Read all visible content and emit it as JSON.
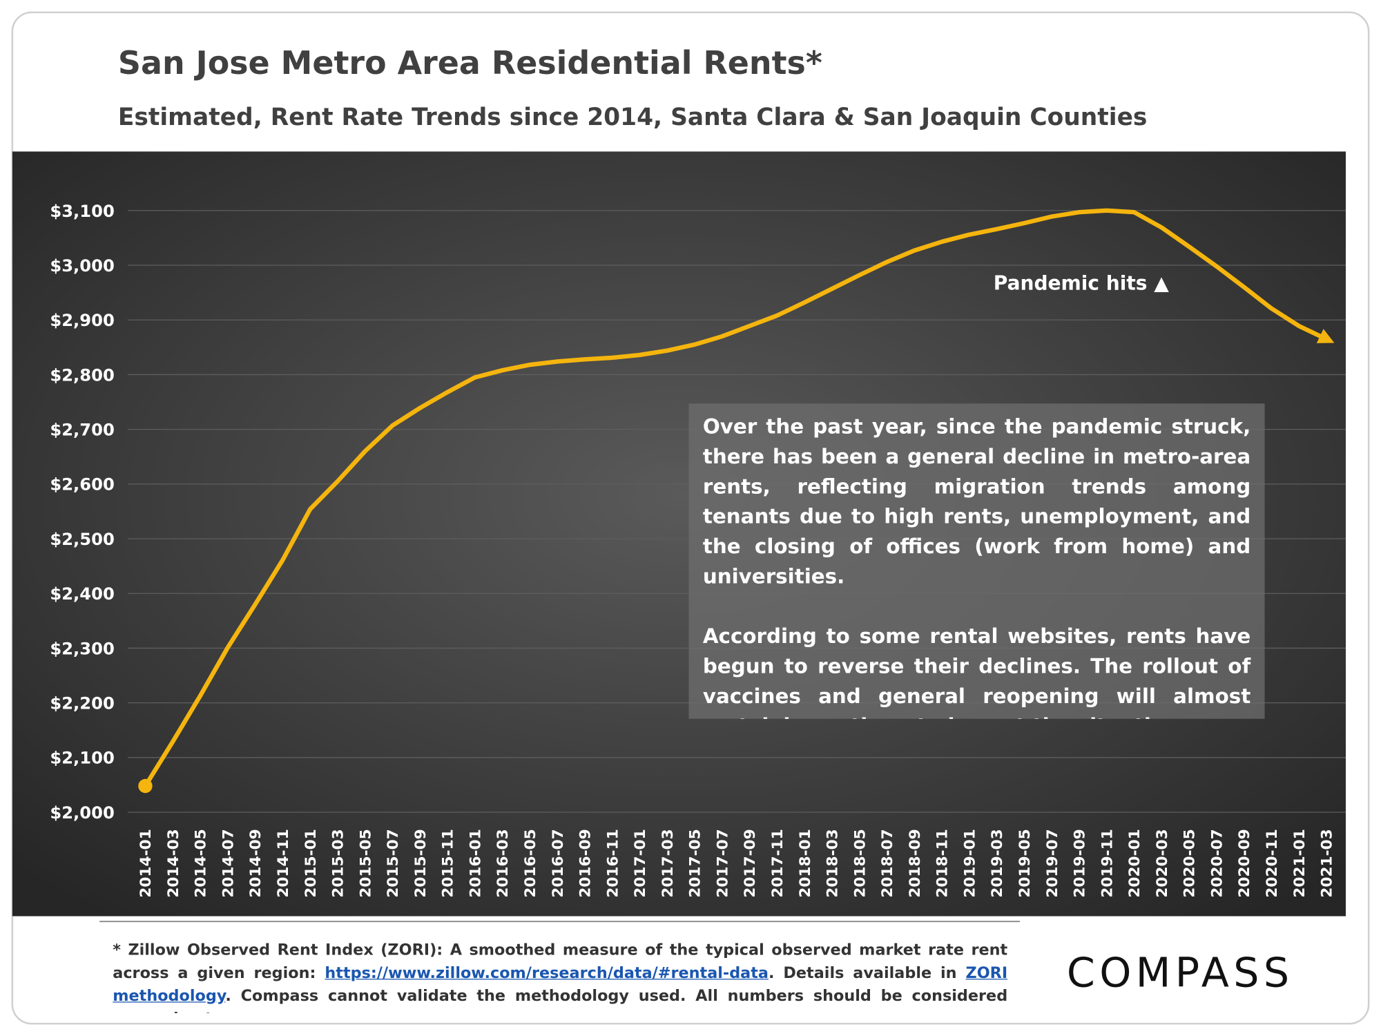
{
  "chart_data": {
    "type": "line",
    "title": "San Jose Metro Area Residential Rents*",
    "subtitle": "Estimated, Rent Rate Trends since 2014, Santa Clara & San Joaquin Counties",
    "categories": [
      "2014-01",
      "2014-03",
      "2014-05",
      "2014-07",
      "2014-09",
      "2014-11",
      "2015-01",
      "2015-03",
      "2015-05",
      "2015-07",
      "2015-09",
      "2015-11",
      "2016-01",
      "2016-03",
      "2016-05",
      "2016-07",
      "2016-09",
      "2016-11",
      "2017-01",
      "2017-03",
      "2017-05",
      "2017-07",
      "2017-09",
      "2017-11",
      "2018-01",
      "2018-03",
      "2018-05",
      "2018-07",
      "2018-09",
      "2018-11",
      "2019-01",
      "2019-03",
      "2019-05",
      "2019-07",
      "2019-09",
      "2019-11",
      "2020-01",
      "2020-03",
      "2020-05",
      "2020-07",
      "2020-09",
      "2020-11",
      "2021-01",
      "2021-03"
    ],
    "values": [
      2048,
      2129,
      2213,
      2301,
      2380,
      2461,
      2554,
      2605,
      2660,
      2707,
      2739,
      2768,
      2795,
      2808,
      2818,
      2824,
      2828,
      2831,
      2836,
      2844,
      2855,
      2870,
      2889,
      2908,
      2932,
      2957,
      2982,
      3006,
      3027,
      3043,
      3056,
      3066,
      3077,
      3089,
      3097,
      3100,
      3097,
      3069,
      3034,
      2998,
      2960,
      2921,
      2889,
      2865
    ],
    "color": "#f5b50e",
    "ylim": [
      2000,
      3100
    ],
    "yticks": [
      {
        "value": 2000,
        "label": "$2,000"
      },
      {
        "value": 2100,
        "label": "$2,100"
      },
      {
        "value": 2200,
        "label": "$2,200"
      },
      {
        "value": 2300,
        "label": "$2,300"
      },
      {
        "value": 2400,
        "label": "$2,400"
      },
      {
        "value": 2500,
        "label": "$2,500"
      },
      {
        "value": 2600,
        "label": "$2,600"
      },
      {
        "value": 2700,
        "label": "$2,700"
      },
      {
        "value": 2800,
        "label": "$2,800"
      },
      {
        "value": 2900,
        "label": "$2,900"
      },
      {
        "value": 3000,
        "label": "$3,000"
      },
      {
        "value": 3100,
        "label": "$3,100"
      }
    ],
    "grid": true,
    "annotation": "Pandemic hits ▲",
    "notes": [
      "Over the past year, since the pandemic struck, there has been a general decline in metro-area rents, reflecting migration trends among tenants due to high rents, unemployment, and the closing of offices (work from home) and universities.",
      "According to some rental websites, rents have begun to reverse their declines. The rollout of vaccines and general reopening will almost certainly continue to impact the situation."
    ],
    "footnote": {
      "text1": "* Zillow Observed Rent Index (ZORI): A smoothed measure of the typical observed market rate rent across a given region: ",
      "link1": "https://www.zillow.com/research/data/#rental-data",
      "text2": ". Details available in ",
      "link2": "ZORI methodology",
      "text3": ". Compass cannot validate the methodology used. All numbers should be considered approximate."
    },
    "logo": "COMPASS"
  }
}
